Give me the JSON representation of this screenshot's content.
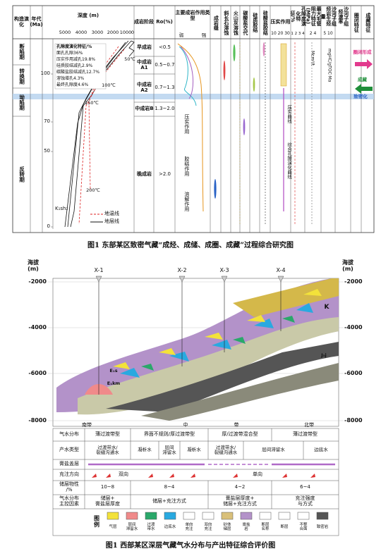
{
  "figure1": {
    "headers": [
      "构造演化",
      "年代(Ma)",
      "深度 (m)",
      "成岩阶段",
      "Ro(%)",
      "主要成岩作用类型",
      "成岩缝",
      "斜长石溶蚀",
      "火山灰溶蚀",
      "碳酸盐交代",
      "硅质胶结",
      "硅酸盐胶结",
      "压实作用",
      "孔隙度演化特征/%",
      "最大毛管阻力特征(MPa)",
      "沙河子组烃岩生烃量",
      "沙河子组烃速率",
      "圈闭特征",
      "成藏特征"
    ],
    "depth_ticks": [
      "5000",
      "4000",
      "3000",
      "2000",
      "1000",
      "0"
    ],
    "age_ticks": [
      "100",
      "70",
      "50",
      "0"
    ],
    "tectonic_stages": [
      "断陷期",
      "转换期",
      "坳陷期",
      "反转期"
    ],
    "diagenetic_stages": [
      "早成岩",
      "中成岩A1",
      "中成岩A2",
      "中成岩B",
      "晚成岩"
    ],
    "ro": [
      "<0.5",
      "0.5~0.7",
      "0.7~1.3",
      "1.3~2.0",
      ">2.0"
    ],
    "intensity": [
      "弱",
      "强"
    ],
    "diagenesis_types": [
      "压实作用",
      "胶结作用",
      "溶解作用"
    ],
    "porosity_notes": [
      "孔隙度演化特征/%",
      "面孔孔隙36%",
      "压实作用减孔19.8%",
      "硅质胶结减孔2.9%",
      "碳酸盐胶结减孔12.7%",
      "溶蚀增孔4.3%",
      "最终孔隙度4.6%"
    ],
    "temperatures": [
      "50℃",
      "100℃",
      "150℃",
      "200℃"
    ],
    "formation": "K₁sh₂",
    "legend": [
      "地温线",
      "地层线"
    ],
    "porosity_ticks": "10 20 30",
    "pressure_ticks": "1 2 3 4",
    "generation_ticks": "2 4",
    "rate_ticks": "5 10",
    "generation_unit": "Mcm³/t",
    "rate_unit": "mgHC/gTOC·Ma",
    "curve_labels": [
      "压实曲线",
      "综合孔隙演化曲线"
    ],
    "events": [
      "圈闭形成",
      "成藏",
      "致密化"
    ],
    "caption": "图1  东部某区致密气藏“成烃、成储、成圈、成藏”过程综合研究图"
  },
  "figure2": {
    "axis_label": "海拔\n(m)",
    "altitudes": [
      "-2000",
      "-4000",
      "-6000",
      "-8000"
    ],
    "wells": [
      "X-1",
      "X-2",
      "X-3",
      "X-4"
    ],
    "formations": [
      "K",
      "J₃j",
      "E₁s",
      "E₁km"
    ],
    "belts": [
      "南带",
      "中",
      "带",
      "北带"
    ],
    "row_labels": [
      "气水分布",
      "产水类型",
      "膏盐盖层",
      "充注方向",
      "储层物性\n/%",
      "气水分布\n主控因素"
    ],
    "distribution": [
      "薄过渡带型",
      "界面不规则/厚过渡带型",
      "厚/过渡带混合型",
      "薄过渡带型"
    ],
    "water_types": [
      "过渡带水/\n裂缝沟通水",
      "凝析水",
      "层间\n滞留水",
      "凝析水",
      "过渡带水/\n裂缝沟通水",
      "层间滞留水",
      "边底水"
    ],
    "charging": [
      "双向",
      "单向"
    ],
    "properties": [
      "10~8",
      "8~4",
      "4~2",
      "6~4"
    ],
    "controls": [
      "储层+\n膏盐层厚度",
      "储层+充注方式",
      "膏盐层厚度+\n储层+充注方式",
      "充注强度\n与方式"
    ],
    "legend_title": "图\n例",
    "legend": [
      "气层",
      "层间\n滞留水",
      "过渡\n带水",
      "边底水",
      "单向\n充注",
      "双向\n充注",
      "砂体\n储层",
      "膏盐\n岩",
      "断层\n名称",
      "断层",
      "不整\n合面",
      "致密岩"
    ],
    "caption": "图1  西部某区深层气藏气水分布与产出特征综合评价图"
  }
}
